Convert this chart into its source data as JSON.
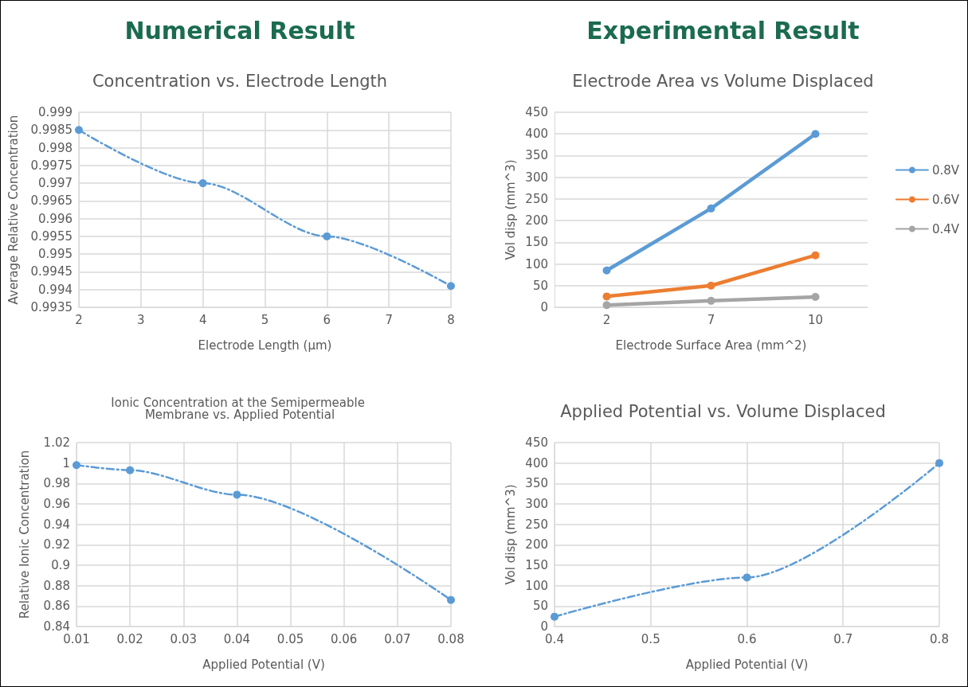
{
  "chart_data": [
    {
      "type": "line",
      "annotations": [
        "Numerical Result"
      ],
      "title": "Concentration vs. Electrode Length",
      "xlabel": "Electrode Length (µm)",
      "ylabel": "Average Relative Concentration",
      "x": [
        2,
        4,
        6,
        8
      ],
      "series": [
        {
          "color": "#5b9bd5",
          "values": [
            0.9985,
            0.997,
            0.9955,
            0.9941
          ]
        }
      ],
      "xlim": [
        2,
        8
      ],
      "xticks": [
        2,
        3,
        4,
        5,
        6,
        7,
        8
      ],
      "ylim": [
        0.9935,
        0.999
      ],
      "yticks": [
        0.9935,
        0.994,
        0.9945,
        0.995,
        0.9955,
        0.996,
        0.9965,
        0.997,
        0.9975,
        0.998,
        0.9985,
        0.999
      ],
      "grid": true,
      "marker": "circle",
      "line_style": "dashed"
    },
    {
      "type": "line",
      "annotations": [
        "Experimental Result"
      ],
      "title": "Electrode Area vs Volume Displaced",
      "xlabel": "Electrode Surface Area (mm^2)",
      "ylabel": "Vol disp (mm^3)",
      "categories": [
        "2",
        "7",
        "10"
      ],
      "series": [
        {
          "name": "0.8V",
          "color": "#5b9bd5",
          "values": [
            85,
            228,
            400
          ]
        },
        {
          "name": "0.6V",
          "color": "#ed7d31",
          "values": [
            25,
            50,
            120
          ]
        },
        {
          "name": "0.4V",
          "color": "#a5a5a5",
          "values": [
            5,
            15,
            24
          ]
        }
      ],
      "ylim": [
        0,
        450
      ],
      "yticks": [
        0,
        50,
        100,
        150,
        200,
        250,
        300,
        350,
        400,
        450
      ],
      "grid": "y",
      "legend": "right",
      "marker": "circle",
      "line_style": "solid"
    },
    {
      "type": "line",
      "title": "Ionic Concentration at the Semipermeable Membrane vs. Applied Potential",
      "xlabel": "Applied Potential (V)",
      "ylabel": "Relative Ionic Concentration",
      "x": [
        0.01,
        0.02,
        0.04,
        0.08
      ],
      "series": [
        {
          "color": "#5b9bd5",
          "values": [
            0.998,
            0.993,
            0.969,
            0.866
          ]
        }
      ],
      "xlim": [
        0.01,
        0.08
      ],
      "xticks": [
        0.01,
        0.02,
        0.03,
        0.04,
        0.05,
        0.06,
        0.07,
        0.08
      ],
      "ylim": [
        0.84,
        1.02
      ],
      "yticks": [
        0.84,
        0.86,
        0.88,
        0.9,
        0.92,
        0.94,
        0.96,
        0.98,
        1,
        1.02
      ],
      "grid": true,
      "marker": "circle",
      "line_style": "dashed"
    },
    {
      "type": "line",
      "title": "Applied Potential vs. Volume Displaced",
      "xlabel": "Applied Potential (V)",
      "ylabel": "Vol disp (mm^3)",
      "x": [
        0.4,
        0.6,
        0.8
      ],
      "series": [
        {
          "color": "#5b9bd5",
          "values": [
            24,
            120,
            400
          ]
        }
      ],
      "xlim": [
        0.4,
        0.8
      ],
      "xticks": [
        0.4,
        0.5,
        0.6,
        0.7,
        0.8
      ],
      "ylim": [
        0,
        450
      ],
      "yticks": [
        0,
        50,
        100,
        150,
        200,
        250,
        300,
        350,
        400,
        450
      ],
      "grid": true,
      "marker": "circle",
      "line_style": "dashed"
    }
  ]
}
